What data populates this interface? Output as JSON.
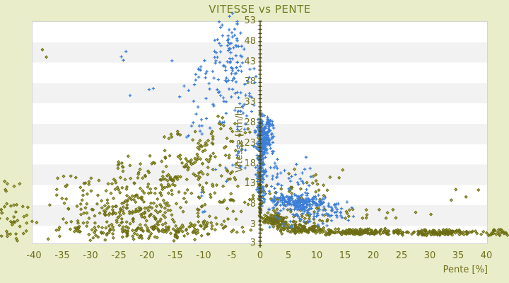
{
  "title": "VITESSE vs PENTE",
  "colors": {
    "background": "#e9edc9",
    "band_white": "#ffffff",
    "band_gray": "#f2f2f2",
    "plot_border": "#d4d4d6",
    "text_olive": "#70701e",
    "title_olive": "#6f7d1f",
    "axis_line": "#45450f",
    "series_blue": "#3c7ed8",
    "series_olive_stroke": "#6c6c16",
    "series_olive_fill": "#b4b845"
  },
  "seed": 7,
  "chart_data": {
    "type": "scatter",
    "title": "VITESSE vs PENTE",
    "xlabel": "Pente [%]",
    "ylabel": "Vitesse [km/h]",
    "xlim": [
      -40.4,
      40.3
    ],
    "ylim": [
      -2,
      53
    ],
    "x_ticks": [
      -40,
      -35,
      -30,
      -25,
      -20,
      -15,
      -10,
      -5,
      0,
      5,
      10,
      15,
      20,
      25,
      30,
      35,
      40
    ],
    "y_ticks": [
      53,
      48,
      43,
      38,
      33,
      28,
      23,
      18,
      13,
      8,
      3
    ],
    "y_axis_bottom_label": "3",
    "y_axis_position_x": 0,
    "y_minor_tick_step": 1,
    "grid_bands": true,
    "legend": "none",
    "series": [
      {
        "name": "serie-olive",
        "marker": "diamond",
        "stroke": "#6c6c16",
        "fill": "#b4b845",
        "clusters": [
          {
            "type": "gauss",
            "n": 200,
            "x": [
              -41,
              -0.5
            ],
            "y": [
              -1,
              4.5
            ]
          },
          {
            "type": "gauss",
            "n": 120,
            "x": [
              -40,
              -1
            ],
            "y": [
              3,
              9
            ]
          },
          {
            "type": "box",
            "n": 120,
            "x": [
              -36,
              -1
            ],
            "y": [
              8,
              15
            ]
          },
          {
            "type": "box",
            "n": 70,
            "x": [
              -26,
              -2
            ],
            "y": [
              14,
              20
            ]
          },
          {
            "type": "box",
            "n": 50,
            "x": [
              -17,
              -3
            ],
            "y": [
              19,
              26
            ]
          },
          {
            "type": "box",
            "n": 12,
            "x": [
              -9,
              -1.5
            ],
            "y": [
              25.5,
              30
            ]
          },
          {
            "type": "line",
            "n": 25,
            "x": [
              -26,
              -16
            ],
            "y1": 6,
            "y2": 15,
            "jitter": 1.1
          },
          {
            "type": "line",
            "n": 25,
            "x": [
              -16,
              -7
            ],
            "y1": 13,
            "y2": 26,
            "jitter": 1.3
          },
          {
            "type": "box",
            "n": 35,
            "x": [
              -46.5,
              -40.6
            ],
            "y": [
              -1,
              8
            ]
          },
          {
            "type": "box",
            "n": 5,
            "x": [
              -46,
              -42
            ],
            "y": [
              9,
              14
            ]
          },
          {
            "type": "points",
            "pts": [
              [
                -38.5,
                46
              ],
              [
                -37.8,
                44.2
              ],
              [
                -44.8,
                8.2
              ],
              [
                -43.5,
                12.5
              ]
            ]
          },
          {
            "type": "gauss",
            "n": 80,
            "x": [
              -0.45,
              0.45
            ],
            "y": [
              0,
              32
            ]
          },
          {
            "type": "gauss",
            "n": 100,
            "x": [
              0.3,
              5
            ],
            "y": [
              2,
              6.5
            ]
          },
          {
            "type": "gauss",
            "n": 120,
            "x": [
              3,
              12
            ],
            "y": [
              0.8,
              3.2
            ]
          },
          {
            "type": "gauss",
            "n": 160,
            "x": [
              10,
              25
            ],
            "y": [
              0.4,
              2.2
            ]
          },
          {
            "type": "gauss",
            "n": 140,
            "x": [
              23,
              40.5
            ],
            "y": [
              0.3,
              2
            ]
          },
          {
            "type": "box",
            "n": 25,
            "x": [
              40,
              43.8
            ],
            "y": [
              0.4,
              1.9
            ]
          },
          {
            "type": "box",
            "n": 40,
            "x": [
              0.5,
              13
            ],
            "y": [
              6,
              13
            ]
          },
          {
            "type": "box",
            "n": 30,
            "x": [
              4,
              12
            ],
            "y": [
              3,
              6
            ]
          },
          {
            "type": "box",
            "n": 10,
            "x": [
              5,
              15
            ],
            "y": [
              13,
              17
            ]
          },
          {
            "type": "box",
            "n": 15,
            "x": [
              15,
              24
            ],
            "y": [
              4.5,
              7
            ]
          },
          {
            "type": "points",
            "pts": [
              [
                36.4,
                9.9
              ],
              [
                38.6,
                11.6
              ],
              [
                34.6,
                11.7
              ],
              [
                14.6,
                16.5
              ],
              [
                30.2,
                5.6
              ],
              [
                27.5,
                6.1
              ],
              [
                33.8,
                9.1
              ]
            ]
          }
        ]
      },
      {
        "name": "serie-bleue",
        "marker": "plus",
        "stroke": "#3c7ed8",
        "fill": "none",
        "clusters": [
          {
            "type": "box",
            "n": 45,
            "x": [
              -13.5,
              -6
            ],
            "y": [
              24,
              44
            ]
          },
          {
            "type": "gauss",
            "n": 85,
            "x": [
              -8.5,
              -2
            ],
            "y": [
              33,
              56.5
            ]
          },
          {
            "type": "box",
            "n": 40,
            "x": [
              -4.5,
              -0.6
            ],
            "y": [
              20,
              42
            ]
          },
          {
            "type": "box",
            "n": 8,
            "x": [
              -26,
              -14
            ],
            "y": [
              34,
              48
            ]
          },
          {
            "type": "box",
            "n": 10,
            "x": [
              -12,
              -2.5
            ],
            "y": [
              5,
              18
            ]
          },
          {
            "type": "gauss",
            "n": 130,
            "x": [
              -0.9,
              1.3
            ],
            "y": [
              2.5,
              33
            ]
          },
          {
            "type": "gauss",
            "n": 150,
            "x": [
              -0.6,
              2.6
            ],
            "y": [
              19,
              31
            ]
          },
          {
            "type": "gauss",
            "n": 190,
            "x": [
              1,
              12.5
            ],
            "y": [
              6.3,
              10.6
            ]
          },
          {
            "type": "box",
            "n": 40,
            "x": [
              6.5,
              14.5
            ],
            "y": [
              5,
              8.2
            ]
          },
          {
            "type": "box",
            "n": 45,
            "x": [
              0.5,
              9
            ],
            "y": [
              10,
              20
            ]
          },
          {
            "type": "box",
            "n": 30,
            "x": [
              0.5,
              13
            ],
            "y": [
              2.2,
              6.4
            ]
          },
          {
            "type": "box",
            "n": 12,
            "x": [
              12,
              16.5
            ],
            "y": [
              4,
              9
            ]
          }
        ]
      }
    ]
  }
}
